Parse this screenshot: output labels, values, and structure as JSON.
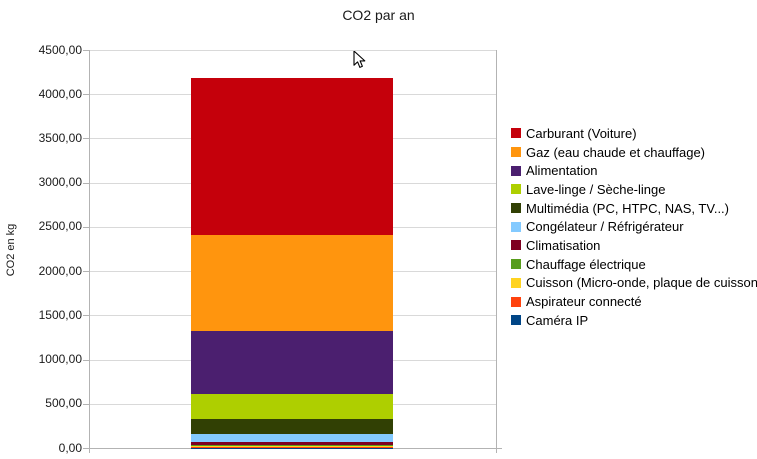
{
  "chart_data": {
    "type": "bar",
    "stacked": true,
    "title": "CO2 par an",
    "xlabel": "",
    "ylabel": "CO2 en kg",
    "categories": [
      ""
    ],
    "ylim": [
      0,
      4500
    ],
    "ytick_step": 500,
    "yticks": [
      "4500,00",
      "4000,00",
      "3500,00",
      "3000,00",
      "2500,00",
      "2000,00",
      "1500,00",
      "1000,00",
      "500,00",
      "0,00"
    ],
    "grid": true,
    "legend_position": "right",
    "stack_note": "legend order is top-of-bar to bottom-of-bar",
    "series": [
      {
        "name": "Carburant (Voiture)",
        "color": "#c5000b",
        "values": [
          1775
        ]
      },
      {
        "name": "Gaz (eau chaude et chauffage)",
        "color": "#ff950e",
        "values": [
          1095
        ]
      },
      {
        "name": "Alimentation",
        "color": "#4b1f6f",
        "values": [
          710
        ]
      },
      {
        "name": "Lave-linge / Sèche-linge",
        "color": "#aecf00",
        "values": [
          280
        ]
      },
      {
        "name": "Multimédia (PC, HTPC, NAS, TV...)",
        "color": "#314004",
        "values": [
          165
        ]
      },
      {
        "name": "Congélateur / Réfrigérateur",
        "color": "#83caff",
        "values": [
          95
        ]
      },
      {
        "name": "Climatisation",
        "color": "#7e0021",
        "values": [
          40
        ]
      },
      {
        "name": "Chauffage électrique",
        "color": "#579d1c",
        "values": [
          6
        ]
      },
      {
        "name": "Cuisson (Micro-onde, plaque de cuisson)",
        "color": "#ffd320",
        "values": [
          12
        ]
      },
      {
        "name": "Aspirateur connecté",
        "color": "#ff420e",
        "values": [
          8
        ]
      },
      {
        "name": "Caméra IP",
        "color": "#004586",
        "values": [
          2
        ]
      }
    ]
  }
}
